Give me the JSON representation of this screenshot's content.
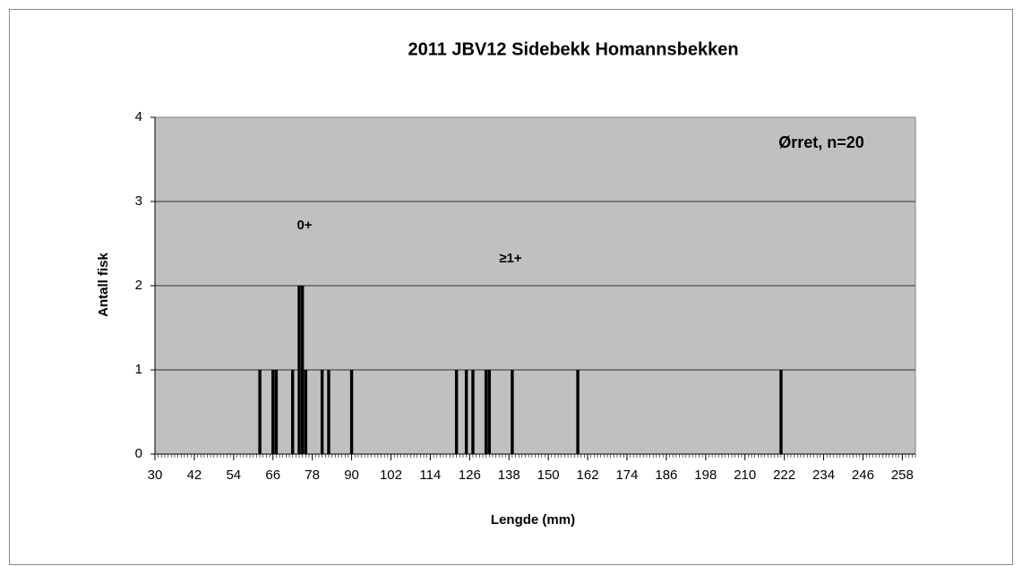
{
  "chart_data": {
    "type": "bar",
    "title": "2011 JBV12 Sidebekk Homannsbekken",
    "x_label": "Lengde (mm)",
    "y_label": "Antall fisk",
    "annotations": [
      "0+",
      "≥1+",
      "Ørret, n=20"
    ],
    "x": [
      62,
      66,
      67,
      72,
      74,
      75,
      76,
      81,
      83,
      90,
      122,
      125,
      127,
      131,
      132,
      139,
      159,
      221
    ],
    "values": [
      1,
      1,
      1,
      1,
      2,
      2,
      1,
      1,
      1,
      1,
      1,
      1,
      1,
      1,
      1,
      1,
      1,
      1
    ],
    "color": "#000000",
    "xlim": [
      30,
      262
    ],
    "xticks": [
      30,
      42,
      54,
      66,
      78,
      90,
      102,
      114,
      126,
      138,
      150,
      162,
      174,
      186,
      198,
      210,
      222,
      234,
      246,
      258
    ],
    "ylim": [
      0,
      4
    ],
    "yticks": [
      0,
      1,
      2,
      3,
      4
    ],
    "grid": true
  }
}
